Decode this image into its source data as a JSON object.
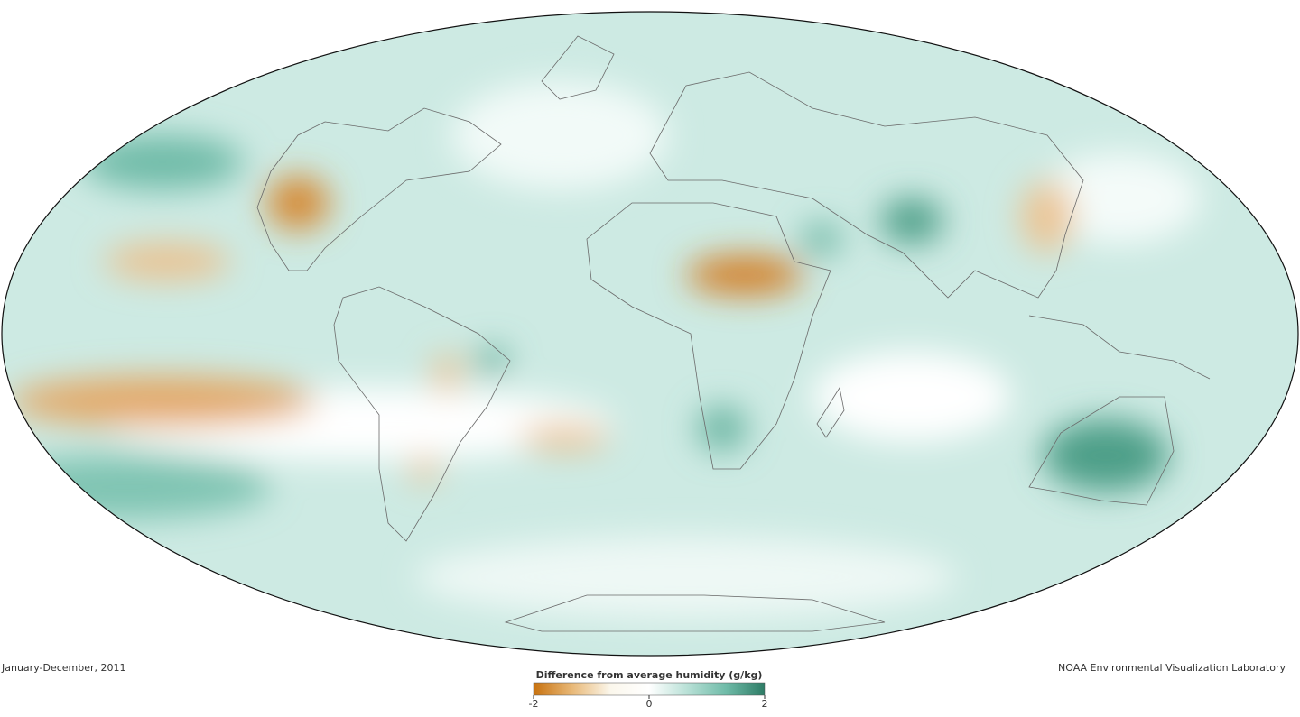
{
  "map": {
    "date": "January-December, 2011",
    "credit": "NOAA Environmental Visualization Laboratory",
    "legend": {
      "title": "Difference from average humidity (g/kg)",
      "min": -2,
      "max": 2,
      "ticks": [
        -2,
        0,
        2
      ],
      "colors": [
        "#c8720f",
        "#e8b877",
        "#fbf7ec",
        "#ffffff",
        "#b8e0d6",
        "#6fbba8",
        "#2e7c66"
      ]
    }
  }
}
